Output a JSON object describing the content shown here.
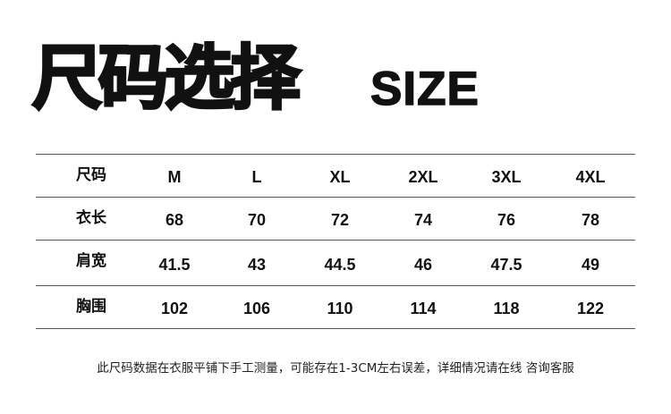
{
  "title": {
    "chinese": "尺码选择",
    "english": "SIZE"
  },
  "table": {
    "header": {
      "label": "尺码",
      "values": [
        "M",
        "L",
        "XL",
        "2XL",
        "3XL",
        "4XL"
      ]
    },
    "rows": [
      {
        "label": "衣长",
        "values": [
          "68",
          "70",
          "72",
          "74",
          "76",
          "78"
        ]
      },
      {
        "label": "肩宽",
        "values": [
          "41.5",
          "43",
          "44.5",
          "46",
          "47.5",
          "49"
        ]
      },
      {
        "label": "胸围",
        "values": [
          "102",
          "106",
          "110",
          "114",
          "118",
          "122"
        ]
      }
    ]
  },
  "footer": "此尺码数据在衣服平铺下手工测量，可能存在1-3CM左右误差，详细情况请在线 咨询客服"
}
